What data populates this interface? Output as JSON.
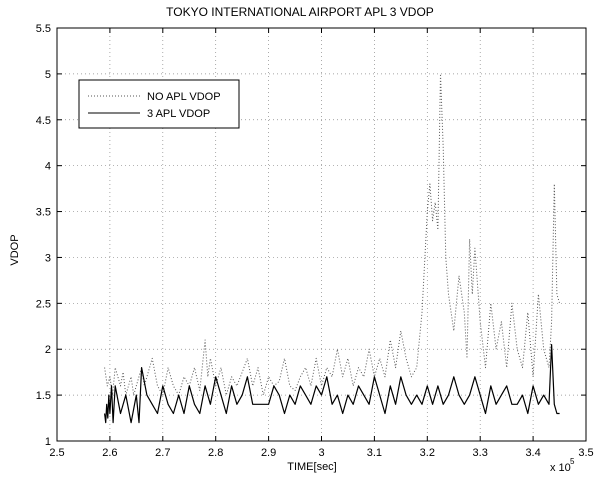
{
  "chart_data": {
    "type": "line",
    "title": "TOKYO INTERNATIONAL AIRPORT APL 3 VDOP",
    "xlabel": "TIME[sec]",
    "ylabel": "VDOP",
    "x_multiplier_label": "x 10",
    "x_multiplier_exponent": "5",
    "xlim": [
      2.5,
      3.5
    ],
    "ylim": [
      1,
      5.5
    ],
    "x_ticks": [
      "2.5",
      "2.6",
      "2.7",
      "2.8",
      "2.9",
      "3",
      "3.1",
      "3.2",
      "3.3",
      "3.4",
      "3.5"
    ],
    "y_ticks": [
      "1",
      "1.5",
      "2",
      "2.5",
      "3",
      "3.5",
      "4",
      "4.5",
      "5",
      "5.5"
    ],
    "grid": true,
    "legend_position": "top-left",
    "series": [
      {
        "name": "NO APL VDOP",
        "style": "dotted",
        "color": "#555555",
        "x": [
          2.59,
          2.595,
          2.6,
          2.605,
          2.61,
          2.62,
          2.625,
          2.63,
          2.64,
          2.645,
          2.65,
          2.66,
          2.665,
          2.67,
          2.68,
          2.69,
          2.7,
          2.71,
          2.72,
          2.73,
          2.74,
          2.75,
          2.76,
          2.77,
          2.78,
          2.785,
          2.79,
          2.8,
          2.81,
          2.82,
          2.83,
          2.84,
          2.85,
          2.86,
          2.87,
          2.88,
          2.89,
          2.9,
          2.91,
          2.92,
          2.93,
          2.94,
          2.95,
          2.96,
          2.97,
          2.98,
          2.99,
          3.0,
          3.01,
          3.02,
          3.03,
          3.04,
          3.05,
          3.06,
          3.07,
          3.08,
          3.09,
          3.1,
          3.11,
          3.12,
          3.13,
          3.14,
          3.15,
          3.16,
          3.17,
          3.18,
          3.19,
          3.2,
          3.205,
          3.21,
          3.215,
          3.22,
          3.225,
          3.23,
          3.235,
          3.24,
          3.25,
          3.26,
          3.27,
          3.275,
          3.28,
          3.285,
          3.29,
          3.3,
          3.31,
          3.32,
          3.33,
          3.34,
          3.35,
          3.36,
          3.37,
          3.38,
          3.39,
          3.4,
          3.41,
          3.42,
          3.43,
          3.435,
          3.44,
          3.445,
          3.45
        ],
        "y": [
          1.8,
          1.6,
          1.7,
          1.5,
          1.8,
          1.6,
          1.75,
          1.5,
          1.7,
          1.5,
          1.6,
          1.8,
          1.6,
          1.7,
          1.9,
          1.6,
          1.5,
          1.8,
          1.6,
          1.5,
          1.7,
          1.6,
          1.8,
          1.55,
          2.1,
          1.7,
          1.9,
          1.6,
          1.8,
          1.5,
          1.7,
          1.6,
          1.75,
          1.9,
          1.6,
          1.8,
          1.5,
          1.7,
          1.6,
          1.65,
          1.9,
          1.6,
          1.55,
          1.7,
          1.8,
          1.6,
          1.9,
          1.6,
          1.8,
          1.7,
          2.0,
          1.7,
          1.9,
          1.6,
          1.8,
          1.7,
          2.0,
          1.7,
          1.9,
          1.7,
          2.1,
          1.8,
          2.2,
          1.9,
          1.7,
          1.8,
          2.4,
          3.5,
          3.8,
          3.4,
          3.6,
          3.3,
          5.0,
          4.2,
          3.0,
          2.6,
          2.2,
          2.8,
          2.4,
          1.9,
          3.2,
          2.6,
          3.1,
          2.3,
          1.8,
          2.5,
          2.0,
          2.3,
          1.8,
          2.5,
          2.0,
          1.8,
          2.4,
          1.7,
          2.6,
          2.0,
          1.8,
          2.3,
          3.8,
          2.6,
          2.5
        ]
      },
      {
        "name": "3 APL VDOP",
        "style": "solid",
        "color": "#000000",
        "x": [
          2.59,
          2.592,
          2.594,
          2.596,
          2.598,
          2.6,
          2.603,
          2.606,
          2.61,
          2.62,
          2.63,
          2.64,
          2.65,
          2.655,
          2.66,
          2.67,
          2.68,
          2.69,
          2.7,
          2.71,
          2.72,
          2.73,
          2.74,
          2.75,
          2.76,
          2.77,
          2.78,
          2.79,
          2.8,
          2.81,
          2.82,
          2.83,
          2.84,
          2.85,
          2.86,
          2.87,
          2.88,
          2.89,
          2.9,
          2.91,
          2.92,
          2.93,
          2.94,
          2.95,
          2.96,
          2.97,
          2.98,
          2.99,
          3.0,
          3.01,
          3.02,
          3.03,
          3.04,
          3.05,
          3.06,
          3.07,
          3.08,
          3.09,
          3.1,
          3.11,
          3.12,
          3.13,
          3.14,
          3.15,
          3.16,
          3.17,
          3.18,
          3.19,
          3.2,
          3.21,
          3.22,
          3.23,
          3.24,
          3.25,
          3.26,
          3.27,
          3.28,
          3.29,
          3.3,
          3.31,
          3.32,
          3.33,
          3.34,
          3.35,
          3.36,
          3.37,
          3.38,
          3.39,
          3.4,
          3.41,
          3.42,
          3.43,
          3.435,
          3.44,
          3.445,
          3.45
        ],
        "y": [
          1.3,
          1.2,
          1.4,
          1.25,
          1.5,
          1.3,
          1.6,
          1.2,
          1.6,
          1.3,
          1.5,
          1.2,
          1.5,
          1.2,
          1.8,
          1.5,
          1.4,
          1.3,
          1.6,
          1.4,
          1.3,
          1.5,
          1.3,
          1.6,
          1.4,
          1.3,
          1.6,
          1.4,
          1.7,
          1.5,
          1.3,
          1.6,
          1.4,
          1.5,
          1.7,
          1.4,
          1.4,
          1.4,
          1.4,
          1.6,
          1.5,
          1.3,
          1.5,
          1.4,
          1.6,
          1.5,
          1.4,
          1.6,
          1.5,
          1.7,
          1.4,
          1.5,
          1.3,
          1.5,
          1.4,
          1.6,
          1.5,
          1.4,
          1.7,
          1.5,
          1.3,
          1.6,
          1.4,
          1.7,
          1.5,
          1.4,
          1.5,
          1.4,
          1.6,
          1.4,
          1.6,
          1.4,
          1.5,
          1.7,
          1.5,
          1.4,
          1.5,
          1.7,
          1.5,
          1.3,
          1.6,
          1.4,
          1.5,
          1.6,
          1.4,
          1.4,
          1.5,
          1.3,
          1.6,
          1.4,
          1.5,
          1.4,
          2.05,
          1.4,
          1.3,
          1.3
        ]
      }
    ]
  }
}
